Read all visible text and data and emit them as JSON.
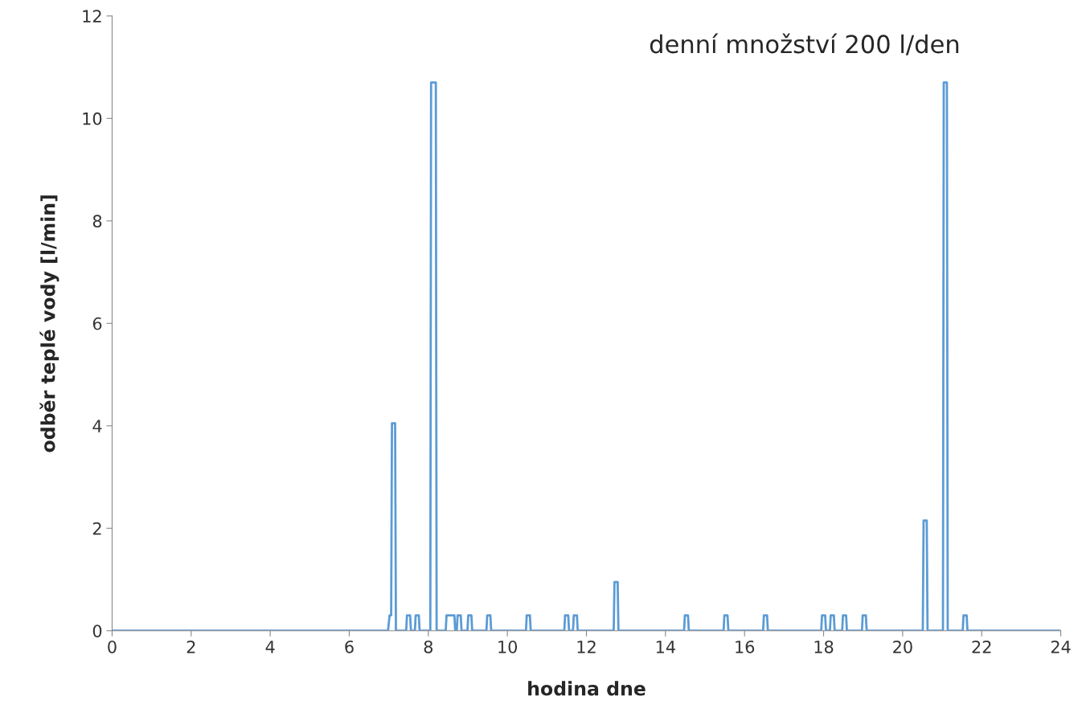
{
  "chart_data": {
    "type": "line",
    "title": "denní množství 200 l/den",
    "xlabel": "hodina dne",
    "ylabel": "odběr teplé vody [l/min]",
    "x": [
      0,
      6.98,
      7.02,
      7.06,
      7.08,
      7.16,
      7.18,
      7.44,
      7.46,
      7.54,
      7.56,
      7.66,
      7.68,
      7.76,
      7.78,
      8.05,
      8.07,
      8.19,
      8.21,
      8.44,
      8.46,
      8.66,
      8.68,
      8.72,
      8.74,
      8.82,
      8.84,
      8.99,
      9.01,
      9.09,
      9.11,
      9.47,
      9.49,
      9.57,
      9.59,
      10.47,
      10.49,
      10.57,
      10.59,
      11.44,
      11.46,
      11.54,
      11.56,
      11.66,
      11.68,
      11.76,
      11.78,
      12.69,
      12.71,
      12.79,
      12.81,
      14.47,
      14.49,
      14.57,
      14.59,
      15.47,
      15.49,
      15.57,
      15.59,
      16.47,
      16.49,
      16.57,
      16.59,
      17.94,
      17.96,
      18.04,
      18.06,
      18.16,
      18.18,
      18.26,
      18.28,
      18.47,
      18.49,
      18.57,
      18.59,
      18.97,
      18.99,
      19.07,
      19.09,
      20.51,
      20.53,
      20.61,
      20.63,
      21.02,
      21.04,
      21.12,
      21.14,
      21.52,
      21.54,
      21.62,
      21.64,
      24
    ],
    "series": [
      {
        "color": "#5b9bd5",
        "values": [
          0,
          0,
          0.3,
          0.3,
          4.05,
          4.05,
          0,
          0,
          0.3,
          0.3,
          0,
          0,
          0.3,
          0.3,
          0,
          0,
          10.7,
          10.7,
          0,
          0,
          0.3,
          0.3,
          0,
          0,
          0.3,
          0.3,
          0,
          0,
          0.3,
          0.3,
          0,
          0,
          0.3,
          0.3,
          0,
          0,
          0.3,
          0.3,
          0,
          0,
          0.3,
          0.3,
          0,
          0,
          0.3,
          0.3,
          0,
          0,
          0.95,
          0.95,
          0,
          0,
          0.3,
          0.3,
          0,
          0,
          0.3,
          0.3,
          0,
          0,
          0.3,
          0.3,
          0,
          0,
          0.3,
          0.3,
          0,
          0,
          0.3,
          0.3,
          0,
          0,
          0.3,
          0.3,
          0,
          0,
          0.3,
          0.3,
          0,
          0,
          2.15,
          2.15,
          0,
          0,
          10.7,
          10.7,
          0,
          0,
          0.3,
          0.3,
          0,
          0
        ]
      }
    ],
    "xlim": [
      0,
      24
    ],
    "xticks": [
      0,
      2,
      4,
      6,
      8,
      10,
      12,
      14,
      16,
      18,
      20,
      22,
      24
    ],
    "ylim": [
      0,
      12
    ],
    "yticks": [
      0,
      2,
      4,
      6,
      8,
      10,
      12
    ],
    "grid": false,
    "legend": false,
    "marker": "none",
    "line_style": "solid"
  }
}
